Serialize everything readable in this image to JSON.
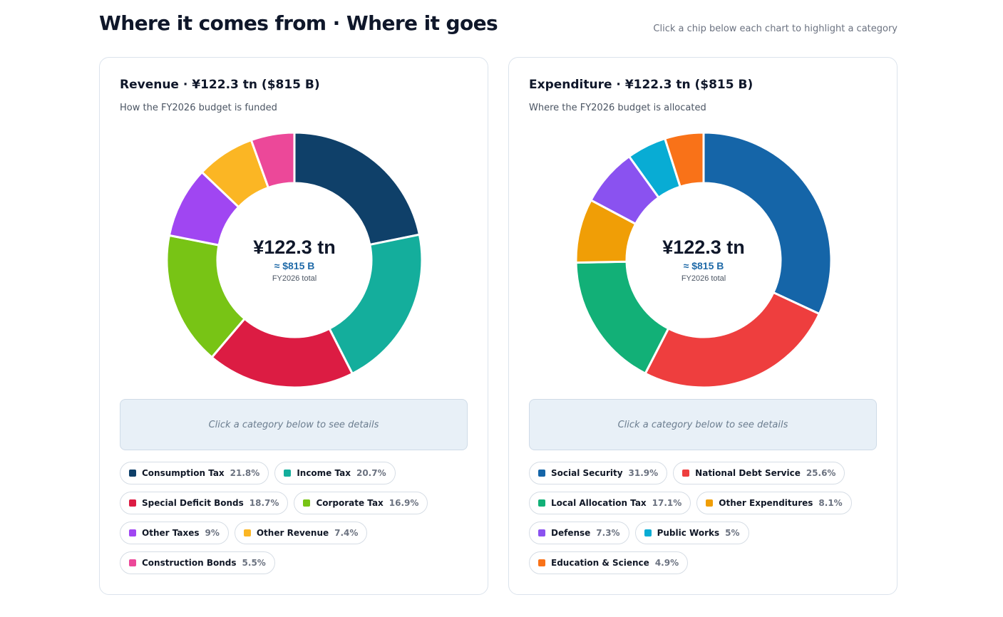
{
  "header": {
    "title": "Where it comes from · Where it goes",
    "hint": "Click a chip below each chart to highlight a category"
  },
  "revenue": {
    "title": "Revenue · ¥122.3 tn ($815 B)",
    "subtitle": "How the FY2026 budget is funded",
    "center_total": "¥122.3 tn",
    "center_usd": "≈ $815 B",
    "center_note": "FY2026 total",
    "details_placeholder": "Click a category below to see details",
    "items": [
      {
        "label": "Consumption Tax",
        "pct": "21.8%"
      },
      {
        "label": "Income Tax",
        "pct": "20.7%"
      },
      {
        "label": "Special Deficit Bonds",
        "pct": "18.7%"
      },
      {
        "label": "Corporate Tax",
        "pct": "16.9%"
      },
      {
        "label": "Other Taxes",
        "pct": "9%"
      },
      {
        "label": "Other Revenue",
        "pct": "7.4%"
      },
      {
        "label": "Construction Bonds",
        "pct": "5.5%"
      }
    ]
  },
  "expenditure": {
    "title": "Expenditure · ¥122.3 tn ($815 B)",
    "subtitle": "Where the FY2026 budget is allocated",
    "center_total": "¥122.3 tn",
    "center_usd": "≈ $815 B",
    "center_note": "FY2026 total",
    "details_placeholder": "Click a category below to see details",
    "items": [
      {
        "label": "Social Security",
        "pct": "31.9%"
      },
      {
        "label": "National Debt Service",
        "pct": "25.6%"
      },
      {
        "label": "Local Allocation Tax",
        "pct": "17.1%"
      },
      {
        "label": "Other Expenditures",
        "pct": "8.1%"
      },
      {
        "label": "Defense",
        "pct": "7.3%"
      },
      {
        "label": "Public Works",
        "pct": "5%"
      },
      {
        "label": "Education & Science",
        "pct": "4.9%"
      }
    ]
  },
  "chart_data": [
    {
      "type": "pie",
      "title": "Revenue · ¥122.3 tn ($815 B)",
      "subtitle": "How the FY2026 budget is funded",
      "donut": true,
      "center_label": "¥122.3 tn",
      "unit": "%",
      "categories": [
        "Consumption Tax",
        "Income Tax",
        "Special Deficit Bonds",
        "Corporate Tax",
        "Other Taxes",
        "Other Revenue",
        "Construction Bonds"
      ],
      "values": [
        21.8,
        20.7,
        18.7,
        16.9,
        9,
        7.4,
        5.5
      ],
      "colors": [
        "#0f4069",
        "#14ae9c",
        "#dc1c43",
        "#78c415",
        "#a046f2",
        "#fbb624",
        "#ec4899"
      ],
      "legend": "bottom"
    },
    {
      "type": "pie",
      "title": "Expenditure · ¥122.3 tn ($815 B)",
      "subtitle": "Where the FY2026 budget is allocated",
      "donut": true,
      "center_label": "¥122.3 tn",
      "unit": "%",
      "categories": [
        "Social Security",
        "National Debt Service",
        "Local Allocation Tax",
        "Other Expenditures",
        "Defense",
        "Public Works",
        "Education & Science"
      ],
      "values": [
        31.9,
        25.6,
        17.1,
        8.1,
        7.3,
        5,
        4.9
      ],
      "colors": [
        "#1565a8",
        "#ee3e3e",
        "#12b077",
        "#f09e06",
        "#8a52f0",
        "#08acd4",
        "#f97218"
      ],
      "legend": "bottom"
    }
  ]
}
